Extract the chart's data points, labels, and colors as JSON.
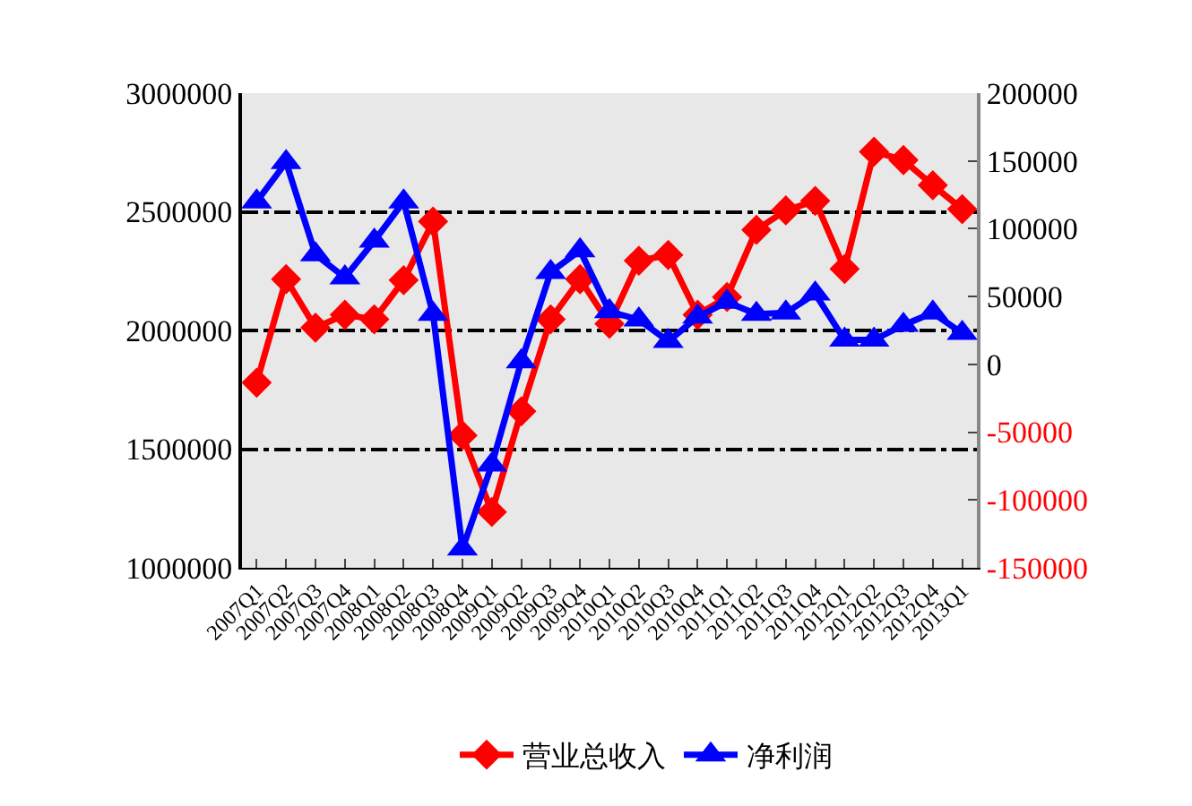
{
  "chart_data": {
    "type": "line",
    "categories": [
      "2007Q1",
      "2007Q2",
      "2007Q3",
      "2007Q4",
      "2008Q1",
      "2008Q2",
      "2008Q3",
      "2008Q4",
      "2009Q1",
      "2009Q2",
      "2009Q3",
      "2009Q4",
      "2010Q1",
      "2010Q2",
      "2010Q3",
      "2010Q4",
      "2011Q1",
      "2011Q2",
      "2011Q3",
      "2011Q4",
      "2012Q1",
      "2012Q2",
      "2012Q3",
      "2012Q4",
      "2013Q1"
    ],
    "series": [
      {
        "name": "营业总收入",
        "color": "#ff0000",
        "marker": "diamond",
        "values": [
          1780000,
          2216000,
          2012000,
          2066000,
          2047000,
          2212000,
          2459000,
          1558000,
          1235000,
          1659000,
          2047000,
          2216000,
          2028000,
          2294000,
          2318000,
          2066000,
          2141000,
          2424000,
          2506000,
          2546000,
          2259000,
          2753000,
          2718000,
          2612000,
          2511000
        ]
      },
      {
        "name": "净利润",
        "color": "#0000ff",
        "marker": "triangle",
        "axis": "y2",
        "values": [
          120000,
          149000,
          81000,
          64000,
          91000,
          120000,
          37000,
          -136000,
          -74000,
          2000,
          68000,
          84000,
          39000,
          33000,
          17000,
          35000,
          46000,
          37000,
          38000,
          52000,
          18000,
          18000,
          29000,
          38000,
          23000
        ]
      }
    ],
    "ylim": [
      1000000,
      3000000
    ],
    "yticks": [
      1000000,
      1500000,
      2000000,
      2500000,
      3000000
    ],
    "y2lim": [
      -150000,
      200000
    ],
    "y2ticks": [
      -150000,
      -100000,
      -50000,
      0,
      50000,
      100000,
      150000,
      200000
    ],
    "grid": "y",
    "legend": "bottom",
    "line_style": "solid"
  }
}
